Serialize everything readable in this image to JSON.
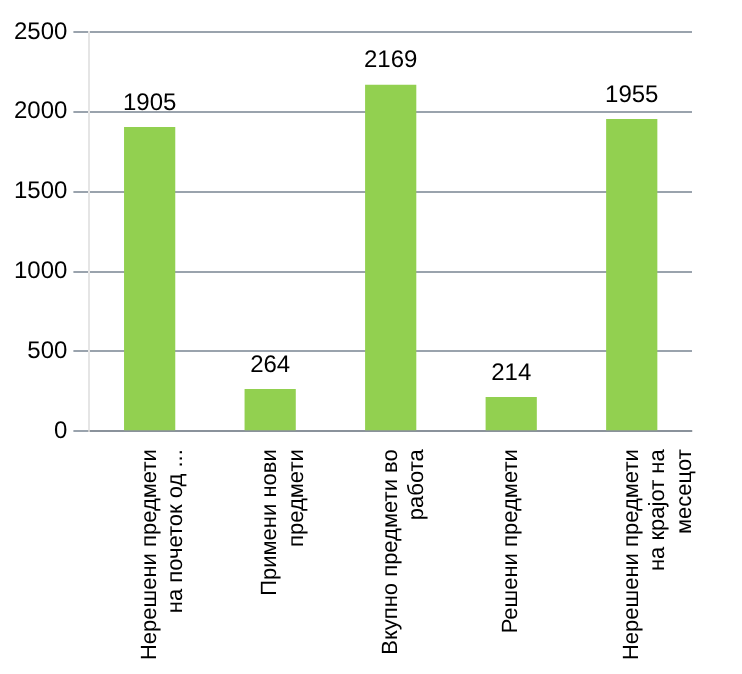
{
  "chart_data": {
    "type": "bar",
    "categories": [
      "Нерешени предмети на почеток од ...",
      "Примени нови предмети",
      "Вкупно предмети во работа",
      "Решени предмети",
      "Нерешени предмети на крајот на месецот"
    ],
    "values": [
      1905,
      264,
      2169,
      214,
      1955
    ],
    "color": "#92d050",
    "ylim": [
      0,
      2500
    ],
    "yticks": [
      0,
      500,
      1000,
      1500,
      2000,
      2500
    ],
    "grid": "y",
    "data_labels": true
  }
}
